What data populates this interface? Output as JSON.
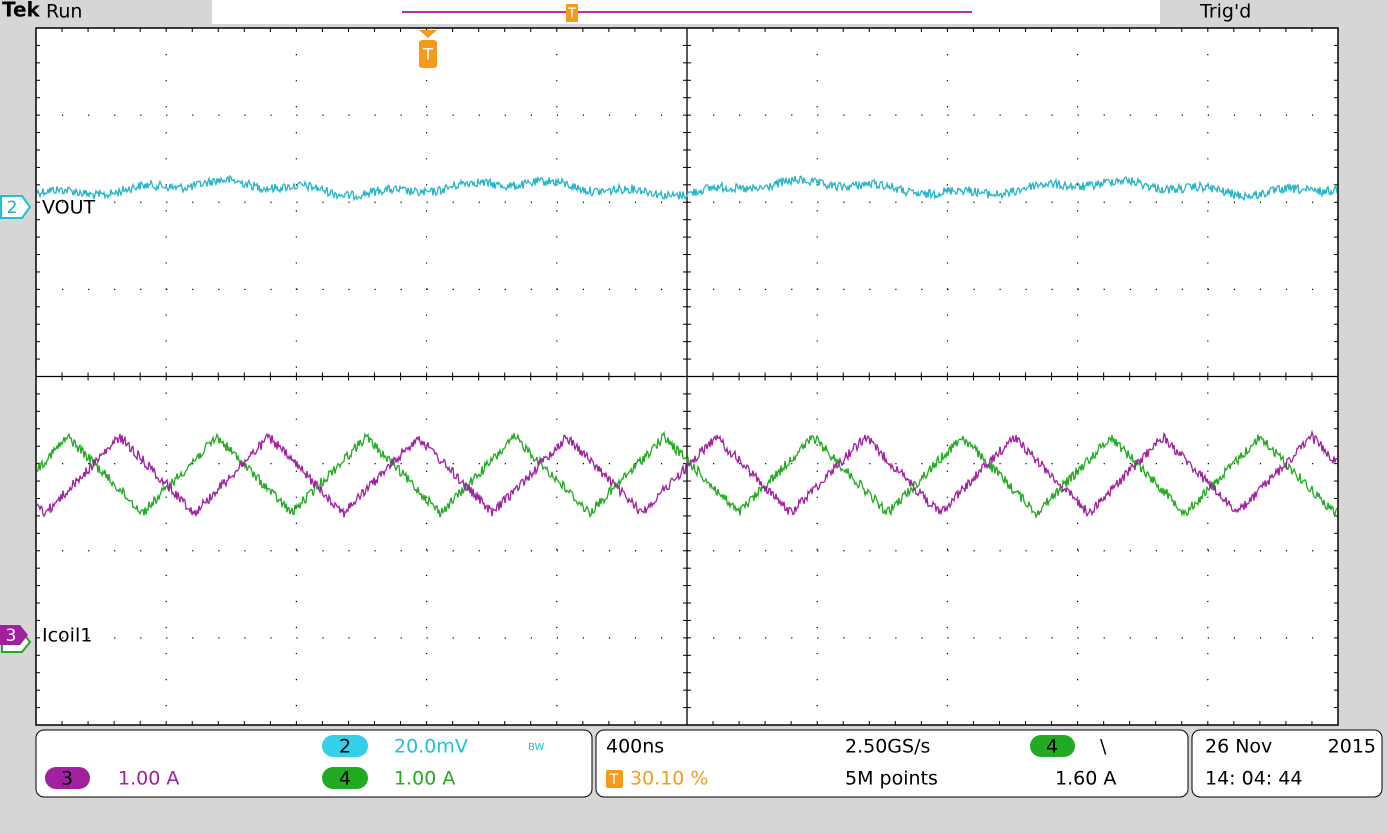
{
  "header": {
    "brand": "Tek",
    "status": "Run",
    "trigger_state": "Trig'd",
    "trigger_marker": "T",
    "trigger_marker_top": "T"
  },
  "trace_labels": [
    {
      "number": "2",
      "label": "VOUT"
    },
    {
      "number": "3",
      "label": "Icoil1"
    }
  ],
  "vertical": {
    "ch2": {
      "number": "2",
      "scale": "20.0mV",
      "bw": "BW"
    },
    "ch3": {
      "number": "3",
      "scale": "1.00 A"
    },
    "ch4": {
      "number": "4",
      "scale": "1.00 A"
    }
  },
  "timebase": {
    "scale": "400ns",
    "sample_rate": "2.50GS/s",
    "trigger_icon": "T",
    "trigger_position": "30.10 %",
    "record_length": "5M points",
    "trigger_source": "4",
    "slope": "\\",
    "trigger_level": "1.60 A"
  },
  "datetime": {
    "date": "26 Nov",
    "year": "2015",
    "time": "14: 04: 44"
  }
}
